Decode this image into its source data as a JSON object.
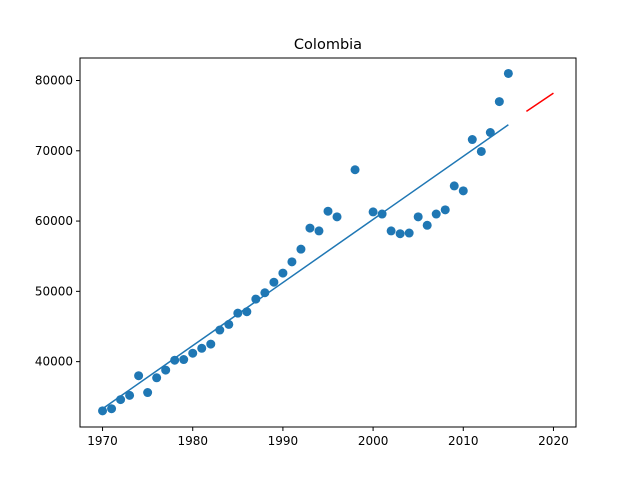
{
  "chart_data": {
    "type": "scatter",
    "title": "Colombia",
    "xlabel": "",
    "ylabel": "",
    "xlim": [
      1967.5,
      2022.5
    ],
    "ylim": [
      30700,
      83200
    ],
    "xticks": [
      1970,
      1980,
      1990,
      2000,
      2010,
      2020
    ],
    "yticks": [
      40000,
      50000,
      60000,
      70000,
      80000
    ],
    "grid": false,
    "colors": {
      "points": "#1f77b4",
      "fit": "#1f77b4",
      "forecast": "#ff0000"
    },
    "points": {
      "x": [
        1970,
        1971,
        1972,
        1973,
        1974,
        1975,
        1976,
        1977,
        1978,
        1979,
        1980,
        1981,
        1982,
        1983,
        1984,
        1985,
        1986,
        1987,
        1988,
        1989,
        1990,
        1991,
        1992,
        1993,
        1994,
        1995,
        1996,
        1998,
        2000,
        2001,
        2002,
        2003,
        2004,
        2005,
        2006,
        2007,
        2008,
        2009,
        2010,
        2011,
        2012,
        2013,
        2014,
        2015
      ],
      "y": [
        33000,
        33300,
        34600,
        35200,
        38000,
        35600,
        37700,
        38800,
        40200,
        40300,
        41200,
        41900,
        42500,
        44500,
        45300,
        46900,
        47100,
        48900,
        49800,
        51300,
        52600,
        54200,
        56000,
        59000,
        58600,
        61400,
        60600,
        67300,
        61300,
        61000,
        58600,
        58200,
        58300,
        60600,
        59400,
        61000,
        61600,
        65000,
        64300,
        71600,
        69900,
        72600,
        77000,
        81000
      ]
    },
    "fit_line": {
      "x": [
        1970,
        2015
      ],
      "y": [
        33300,
        73700
      ]
    },
    "forecast_line": {
      "x": [
        2017,
        2020
      ],
      "y": [
        75600,
        78200
      ]
    }
  }
}
